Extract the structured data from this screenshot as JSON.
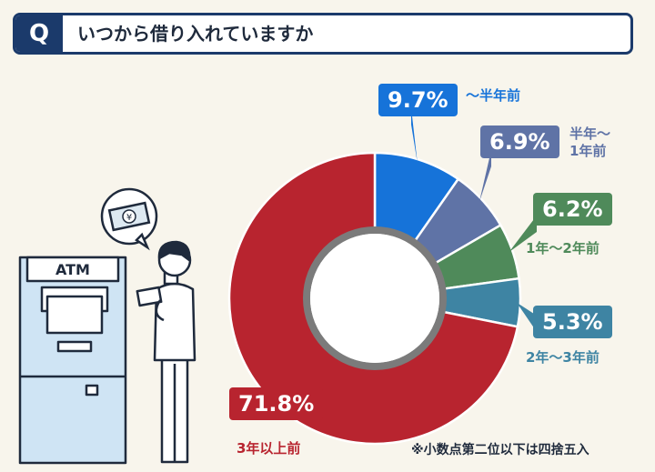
{
  "header": {
    "q_label": "Q",
    "question": "いつから借り入れていますか"
  },
  "illustration": {
    "atm_label": "ATM",
    "bill_symbol": "¥"
  },
  "colors": {
    "s1": "#1673d9",
    "s2": "#5f73a6",
    "s3": "#4f8a5a",
    "s4": "#3e84a3",
    "s5": "#b8242f"
  },
  "chart_data": {
    "type": "pie",
    "categories": [
      "〜半年前",
      "半年〜1年前",
      "1年〜2年前",
      "2年〜3年前",
      "3年以上前"
    ],
    "values": [
      9.7,
      6.9,
      6.2,
      5.3,
      71.8
    ],
    "value_labels": [
      "9.7%",
      "6.9%",
      "6.2%",
      "5.3%",
      "71.8%"
    ],
    "label_lines": [
      [
        "〜半年前"
      ],
      [
        "半年〜",
        "1年前"
      ],
      [
        "1年〜2年前"
      ],
      [
        "2年〜3年前"
      ],
      [
        "3年以上前"
      ]
    ],
    "donut": true,
    "start": "top",
    "direction": "clockwise"
  },
  "footnote": "※小数点第二位以下は四捨五入"
}
